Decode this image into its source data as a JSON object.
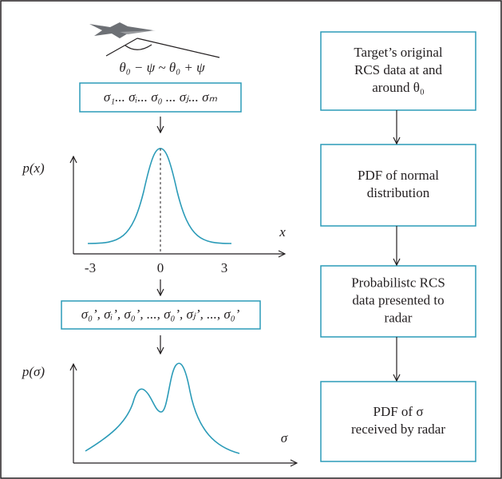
{
  "left": {
    "angle_label": "θ₀ − ψ ~ θ₀ + ψ",
    "box_samples": "σ₁... σᵢ... σ₀   ... σⱼ... σₘ",
    "pdf_y_label": "p(x)",
    "pdf_x_label": "x",
    "pdf_ticks": [
      "-3",
      "0",
      "3"
    ],
    "box_received": "σ₀’, σᵢ’, σ₀’, ..., σ₀’, σⱼ’, ..., σ₀’",
    "rcs_y_label": "p(σ)",
    "rcs_x_label": "σ"
  },
  "right": {
    "boxes": [
      [
        "Target’s original",
        "RCS data at and",
        "around θ₀"
      ],
      [
        "PDF of normal",
        "distribution"
      ],
      [
        "Probabilistc RCS",
        "data presented to",
        "radar"
      ],
      [
        "PDF of σ",
        "received by radar"
      ]
    ]
  }
}
